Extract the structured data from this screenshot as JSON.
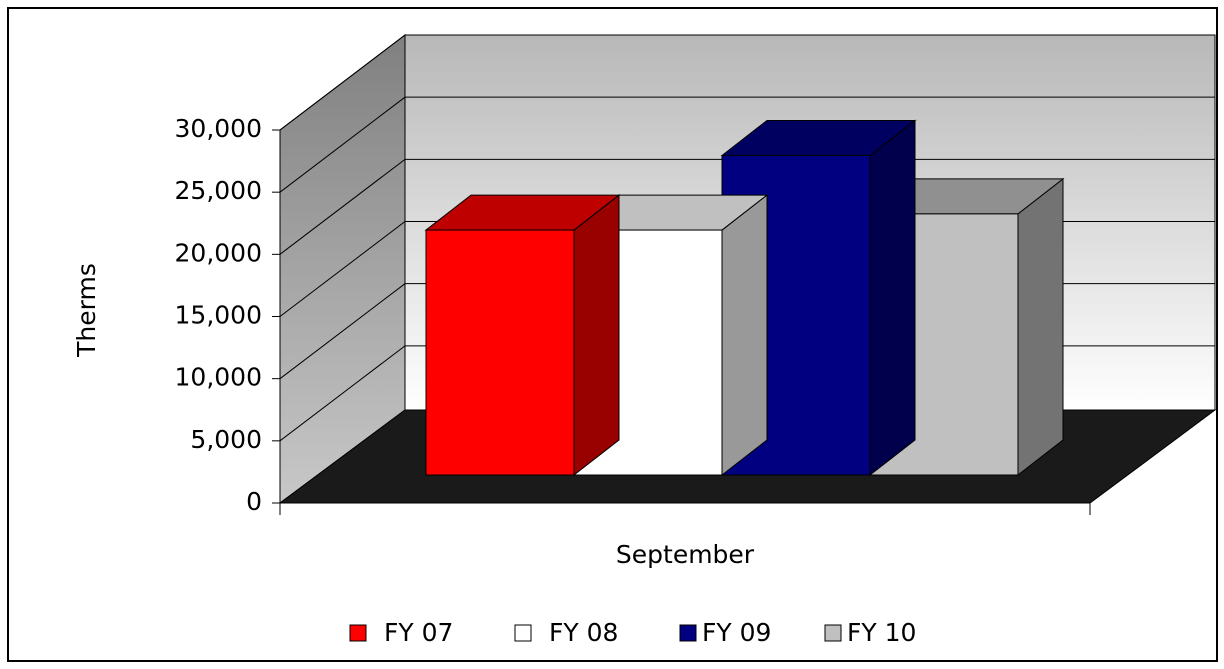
{
  "chart_data": {
    "type": "bar",
    "y_label": "Therms",
    "categories": [
      "September"
    ],
    "series": [
      {
        "name": "FY 07",
        "color": "#ff0000",
        "values": [
          19700
        ]
      },
      {
        "name": "FY 08",
        "color": "#ffffff",
        "values": [
          19700
        ]
      },
      {
        "name": "FY 09",
        "color": "#000080",
        "values": [
          25700
        ]
      },
      {
        "name": "FY 10",
        "color": "#c0c0c0",
        "values": [
          21000
        ]
      }
    ],
    "ylim": [
      0,
      30000
    ],
    "yticks": [
      0,
      {
        "value": 5000,
        "label": "5,000"
      },
      {
        "value": 10000,
        "label": "10,000"
      },
      {
        "value": 15000,
        "label": "15,000"
      },
      {
        "value": 20000,
        "label": "20,000"
      },
      {
        "value": 25000,
        "label": "25,000"
      },
      {
        "value": 30000,
        "label": "30,000"
      }
    ],
    "grid": true,
    "legend": "bottom"
  }
}
